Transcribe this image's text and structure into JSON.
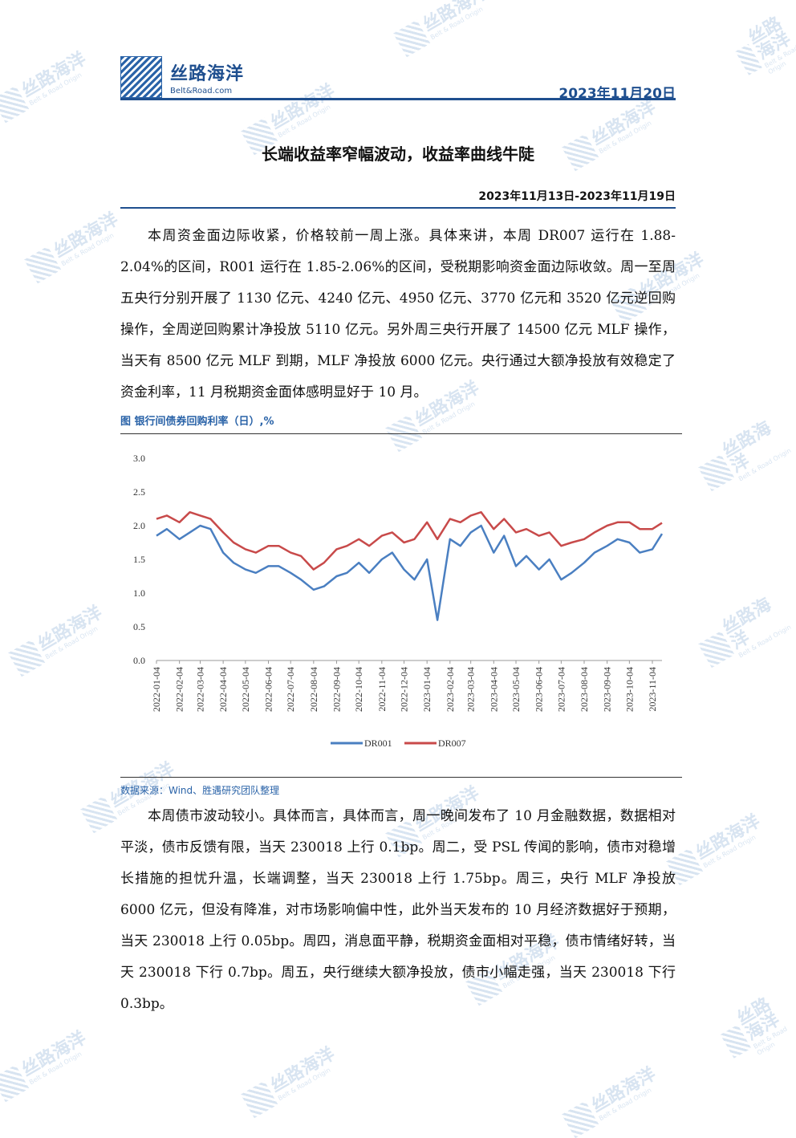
{
  "header": {
    "logo_cn": "丝路海洋",
    "logo_en": "Belt&Road.com",
    "date": "2023年11月20日"
  },
  "watermark": {
    "cn": "丝路海洋",
    "en": "Belt & Road Origin"
  },
  "title": "长端收益率窄幅波动，收益率曲线牛陡",
  "period": "2023年11月13日-2023年11月19日",
  "paragraphs": [
    "本周资金面边际收紧，价格较前一周上涨。具体来讲，本周 DR007 运行在 1.88-2.04%的区间，R001 运行在 1.85-2.06%的区间，受税期影响资金面边际收敛。周一至周五央行分别开展了 1130 亿元、4240 亿元、4950 亿元、3770 亿元和 3520 亿元逆回购操作，全周逆回购累计净投放 5110 亿元。另外周三央行开展了 14500 亿元 MLF 操作，当天有 8500 亿元 MLF 到期，MLF 净投放 6000 亿元。央行通过大额净投放有效稳定了资金利率，11 月税期资金面体感明显好于 10 月。",
    "本周债市波动较小。具体而言，具体而言，周一晚间发布了 10 月金融数据，数据相对平淡，债市反馈有限，当天 230018 上行 0.1bp。周二，受 PSL 传闻的影响，债市对稳增长措施的担忧升温，长端调整，当天 230018 上行 1.75bp。周三，央行 MLF 净投放 6000 亿元，但没有降准，对市场影响偏中性，此外当天发布的 10 月经济数据好于预期，当天 230018 上行 0.05bp。周四，消息面平静，税期资金面相对平稳，债市情绪好转，当天 230018 下行 0.7bp。周五，央行继续大额净投放，债市小幅走强，当天 230018 下行 0.3bp。"
  ],
  "figure": {
    "title": "图    银行间债券回购利率（日）,%",
    "source": "数据来源：Wind、胜遇研究团队整理"
  },
  "chart_data": {
    "type": "line",
    "title": "",
    "xlabel": "",
    "ylabel": "",
    "ylim": [
      0,
      3.0
    ],
    "yticks": [
      "0.0",
      "0.5",
      "1.0",
      "1.5",
      "2.0",
      "2.5",
      "3.0"
    ],
    "xticks": [
      "2022-01-04",
      "2022-02-04",
      "2022-03-04",
      "2022-04-04",
      "2022-05-04",
      "2022-06-04",
      "2022-07-04",
      "2022-08-04",
      "2022-09-04",
      "2022-10-04",
      "2022-11-04",
      "2022-12-04",
      "2023-01-04",
      "2023-02-04",
      "2023-03-04",
      "2023-04-04",
      "2023-05-04",
      "2023-06-04",
      "2023-07-04",
      "2023-08-04",
      "2023-09-04",
      "2023-10-04",
      "2023-11-04"
    ],
    "x": [
      "2022-01-04",
      "2022-01-18",
      "2022-02-04",
      "2022-02-18",
      "2022-03-04",
      "2022-03-18",
      "2022-04-04",
      "2022-04-18",
      "2022-05-04",
      "2022-05-18",
      "2022-06-04",
      "2022-06-18",
      "2022-07-04",
      "2022-07-18",
      "2022-08-04",
      "2022-08-18",
      "2022-09-04",
      "2022-09-18",
      "2022-10-04",
      "2022-10-18",
      "2022-11-04",
      "2022-11-18",
      "2022-12-04",
      "2022-12-18",
      "2023-01-04",
      "2023-01-18",
      "2023-02-04",
      "2023-02-18",
      "2023-03-04",
      "2023-03-18",
      "2023-04-04",
      "2023-04-18",
      "2023-05-04",
      "2023-05-18",
      "2023-06-04",
      "2023-06-18",
      "2023-07-04",
      "2023-07-18",
      "2023-08-04",
      "2023-08-18",
      "2023-09-04",
      "2023-09-18",
      "2023-10-04",
      "2023-10-18",
      "2023-11-04",
      "2023-11-17"
    ],
    "series": [
      {
        "name": "DR001",
        "color": "#4a7fc1",
        "values": [
          1.85,
          1.95,
          1.8,
          1.9,
          2.0,
          1.95,
          1.6,
          1.45,
          1.35,
          1.3,
          1.4,
          1.4,
          1.3,
          1.2,
          1.05,
          1.1,
          1.25,
          1.3,
          1.45,
          1.3,
          1.5,
          1.6,
          1.35,
          1.2,
          1.5,
          0.6,
          1.8,
          1.7,
          1.9,
          2.0,
          1.6,
          1.85,
          1.4,
          1.55,
          1.35,
          1.5,
          1.2,
          1.3,
          1.45,
          1.6,
          1.7,
          1.8,
          1.75,
          1.6,
          1.65,
          1.88
        ]
      },
      {
        "name": "DR007",
        "color": "#c84a4a",
        "values": [
          2.1,
          2.15,
          2.05,
          2.2,
          2.15,
          2.1,
          1.9,
          1.75,
          1.65,
          1.6,
          1.7,
          1.7,
          1.6,
          1.55,
          1.35,
          1.45,
          1.65,
          1.7,
          1.8,
          1.7,
          1.85,
          1.9,
          1.75,
          1.8,
          2.05,
          1.8,
          2.1,
          2.05,
          2.15,
          2.2,
          1.95,
          2.1,
          1.9,
          1.95,
          1.85,
          1.9,
          1.7,
          1.75,
          1.8,
          1.9,
          2.0,
          2.05,
          2.05,
          1.95,
          1.95,
          2.04
        ]
      }
    ],
    "legend": "bottom",
    "grid": false
  }
}
